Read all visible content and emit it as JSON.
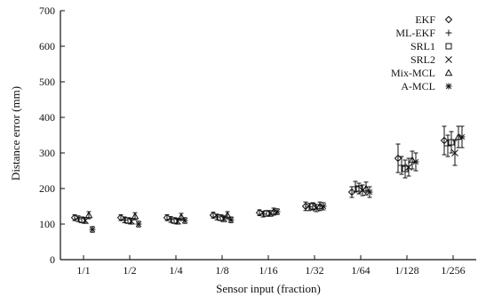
{
  "chart_data": {
    "type": "scatter",
    "xlabel": "Sensor input (fraction)",
    "ylabel": "Distance error (mm)",
    "ylim": [
      0,
      700
    ],
    "yticks": [
      0,
      100,
      200,
      300,
      400,
      500,
      600,
      700
    ],
    "categories": [
      "1/1",
      "1/2",
      "1/4",
      "1/8",
      "1/16",
      "1/32",
      "1/64",
      "1/128",
      "1/256"
    ],
    "legend_position": "top-right",
    "series": [
      {
        "name": "EKF",
        "marker": "diamond",
        "values": [
          118,
          118,
          118,
          125,
          132,
          150,
          190,
          285,
          335
        ],
        "errors": [
          8,
          8,
          8,
          8,
          8,
          12,
          15,
          40,
          40
        ]
      },
      {
        "name": "ML-EKF",
        "marker": "plus",
        "values": [
          115,
          112,
          113,
          120,
          128,
          148,
          205,
          265,
          320
        ],
        "errors": [
          8,
          8,
          8,
          8,
          8,
          10,
          15,
          25,
          30
        ]
      },
      {
        "name": "SRL1",
        "marker": "square",
        "values": [
          112,
          110,
          110,
          118,
          130,
          150,
          200,
          255,
          330
        ],
        "errors": [
          8,
          8,
          8,
          8,
          8,
          10,
          15,
          25,
          30
        ]
      },
      {
        "name": "SRL2",
        "marker": "cross",
        "values": [
          110,
          108,
          108,
          115,
          130,
          145,
          195,
          260,
          300
        ],
        "errors": [
          8,
          8,
          8,
          8,
          8,
          10,
          15,
          25,
          35
        ]
      },
      {
        "name": "Mix-MCL",
        "marker": "triangle",
        "values": [
          125,
          122,
          120,
          125,
          135,
          150,
          200,
          280,
          345
        ],
        "errors": [
          10,
          10,
          10,
          10,
          10,
          12,
          18,
          25,
          30
        ]
      },
      {
        "name": "A-MCL",
        "marker": "star",
        "values": [
          85,
          100,
          110,
          112,
          135,
          150,
          190,
          275,
          345
        ],
        "errors": [
          8,
          8,
          8,
          8,
          8,
          10,
          15,
          25,
          30
        ]
      }
    ]
  }
}
